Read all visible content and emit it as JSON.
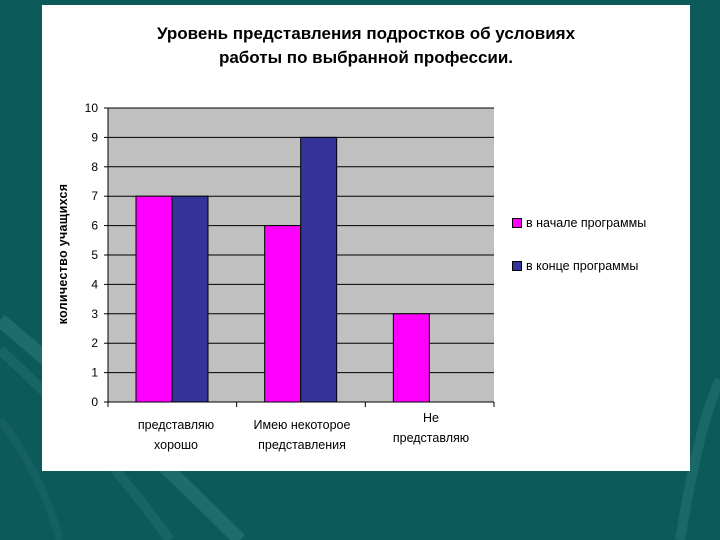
{
  "chart_data": {
    "type": "bar",
    "title_line1": "Уровень представления подростков об условиях",
    "title_line2": "работы по выбранной профессии.",
    "xlabel": "",
    "ylabel": "количество учащихся",
    "ylim": [
      0,
      10
    ],
    "yticks": [
      "0",
      "1",
      "2",
      "3",
      "4",
      "5",
      "6",
      "7",
      "8",
      "9",
      "10"
    ],
    "grid": true,
    "legend_position": "right",
    "categories": [
      [
        "представляю",
        "хорошо"
      ],
      [
        "Имею некоторое",
        "представления"
      ],
      [
        "Не",
        "представляю"
      ]
    ],
    "series": [
      {
        "name": "в начале программы",
        "values": [
          7,
          6,
          3
        ],
        "color": "#ff00ff"
      },
      {
        "name": "в конце программы",
        "values": [
          7,
          9,
          0
        ],
        "color": "#333399"
      }
    ],
    "plot_background": "#c0c0c0"
  },
  "colors": {
    "slide_background": "#0d5a5a",
    "panel": "#ffffff"
  }
}
